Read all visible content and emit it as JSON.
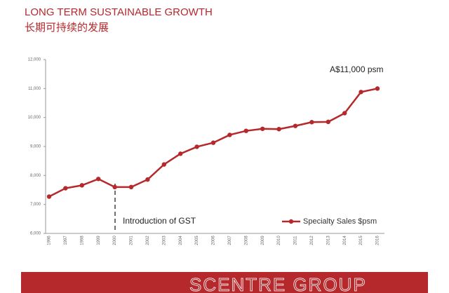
{
  "chart_data": {
    "type": "line",
    "title": "LONG TERM SUSTAINABLE GROWTH",
    "subtitle": "长期可持续的发展",
    "categories": [
      "1996",
      "1997",
      "1998",
      "1999",
      "2000",
      "2001",
      "2002",
      "2003",
      "2004",
      "2005",
      "2006",
      "2007",
      "2008",
      "2009",
      "2010",
      "2011",
      "2012",
      "2013",
      "2014",
      "2015",
      "2016"
    ],
    "series": [
      {
        "name": "Specialty Sales $psm",
        "color": "#b5282b",
        "values": [
          7270,
          7560,
          7660,
          7880,
          7600,
          7600,
          7860,
          8380,
          8750,
          8990,
          9130,
          9400,
          9540,
          9610,
          9600,
          9710,
          9840,
          9850,
          10150,
          10880,
          11000
        ]
      }
    ],
    "ylim": [
      6000,
      12000
    ],
    "yticks": [
      {
        "value": 6000,
        "label": "6,000"
      },
      {
        "value": 7000,
        "label": "7,000"
      },
      {
        "value": 8000,
        "label": "8,000"
      },
      {
        "value": 9000,
        "label": "9,000"
      },
      {
        "value": 10000,
        "label": "10,000"
      },
      {
        "value": 11000,
        "label": "11,000"
      },
      {
        "value": 12000,
        "label": "12,000"
      }
    ],
    "annotations": [
      "A$11,000 psm",
      "Introduction of GST"
    ],
    "legend": "bottom-right",
    "footer": "SCENTRE GROUP"
  }
}
